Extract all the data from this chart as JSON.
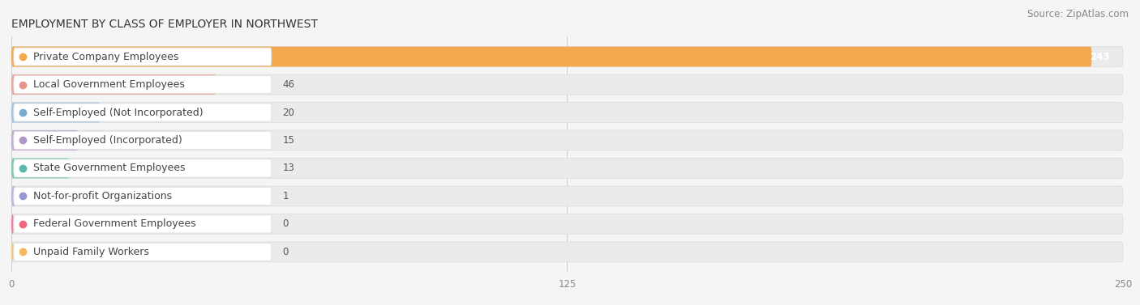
{
  "title": "EMPLOYMENT BY CLASS OF EMPLOYER IN NORTHWEST",
  "source": "Source: ZipAtlas.com",
  "categories": [
    "Private Company Employees",
    "Local Government Employees",
    "Self-Employed (Not Incorporated)",
    "Self-Employed (Incorporated)",
    "State Government Employees",
    "Not-for-profit Organizations",
    "Federal Government Employees",
    "Unpaid Family Workers"
  ],
  "values": [
    243,
    46,
    20,
    15,
    13,
    1,
    0,
    0
  ],
  "bar_colors": [
    "#f5a94e",
    "#e8a89c",
    "#a8c4e0",
    "#c4aed0",
    "#7ec8bc",
    "#b8b8e0",
    "#f08098",
    "#f5c87a"
  ],
  "dot_colors": [
    "#f5a94e",
    "#e8948a",
    "#7aaad0",
    "#b098c4",
    "#5ab8aa",
    "#9898d0",
    "#f06880",
    "#f5b860"
  ],
  "xlim_max": 250,
  "xticks": [
    0,
    125,
    250
  ],
  "bg_color": "#f5f5f5",
  "bar_bg_color": "#ebebeb",
  "bar_bg_border": "#dddddd",
  "label_box_color": "#ffffff",
  "label_box_border": "#dddddd",
  "title_fontsize": 10,
  "source_fontsize": 8.5,
  "label_fontsize": 9,
  "value_fontsize": 8.5,
  "tick_fontsize": 8.5
}
